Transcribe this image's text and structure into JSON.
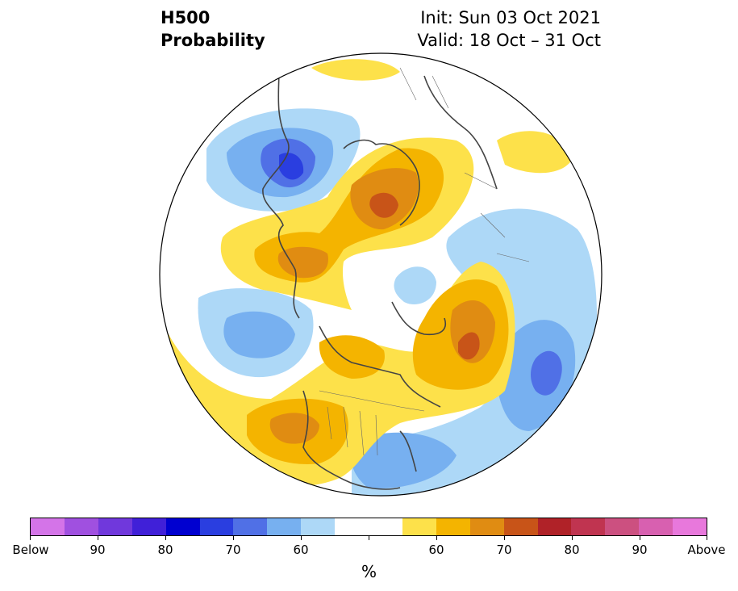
{
  "title": {
    "left_line1": "H500",
    "left_line2": "Probability",
    "right_line1": "Init: Sun 03 Oct 2021",
    "right_line2": "Valid: 18 Oct – 31 Oct"
  },
  "map": {
    "projection": "north-polar-stereographic",
    "coastline_color": "#444444",
    "below_colors": [
      "#add8f7",
      "#77b0f0",
      "#5070e6",
      "#2a3ee0"
    ],
    "above_colors": [
      "#fde14a",
      "#f4b400",
      "#e08c12",
      "#c85418"
    ]
  },
  "colorbar": {
    "colors": [
      "#d474e8",
      "#a050e0",
      "#7038dc",
      "#4020d8",
      "#0000d0",
      "#2a3ee0",
      "#5070e6",
      "#77b0f0",
      "#add8f7",
      "#ffffff",
      "#fde14a",
      "#f4b400",
      "#e08c12",
      "#c85418",
      "#b02228",
      "#c03450",
      "#cc5080",
      "#d860b0",
      "#e878dc"
    ],
    "tick_labels": [
      "Below",
      "90",
      "80",
      "70",
      "60",
      "60",
      "70",
      "80",
      "90",
      "Above"
    ],
    "unit": "%"
  }
}
